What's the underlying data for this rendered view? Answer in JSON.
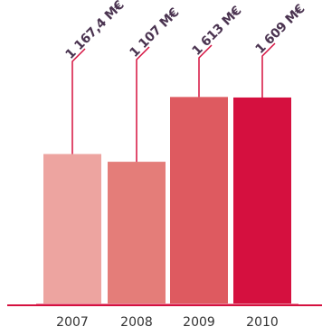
{
  "chart_data": {
    "type": "bar",
    "categories": [
      "2007",
      "2008",
      "2009",
      "2010"
    ],
    "values": [
      1167.4,
      1107,
      1613,
      1609
    ],
    "data_labels": [
      "1 167,4 M€",
      "1 107 M€",
      "1 613 M€",
      "1 609 M€"
    ],
    "title": "",
    "xlabel": "",
    "ylabel": "",
    "ylim": [
      0,
      2300
    ],
    "grid": false,
    "legend": "none",
    "colors": {
      "bars": [
        "#eda4a0",
        "#e47d79",
        "#de5a60",
        "#d5103f"
      ],
      "axis": "#d5103f",
      "labels": "#4a3350",
      "leader_lines": "#d5103f"
    }
  }
}
